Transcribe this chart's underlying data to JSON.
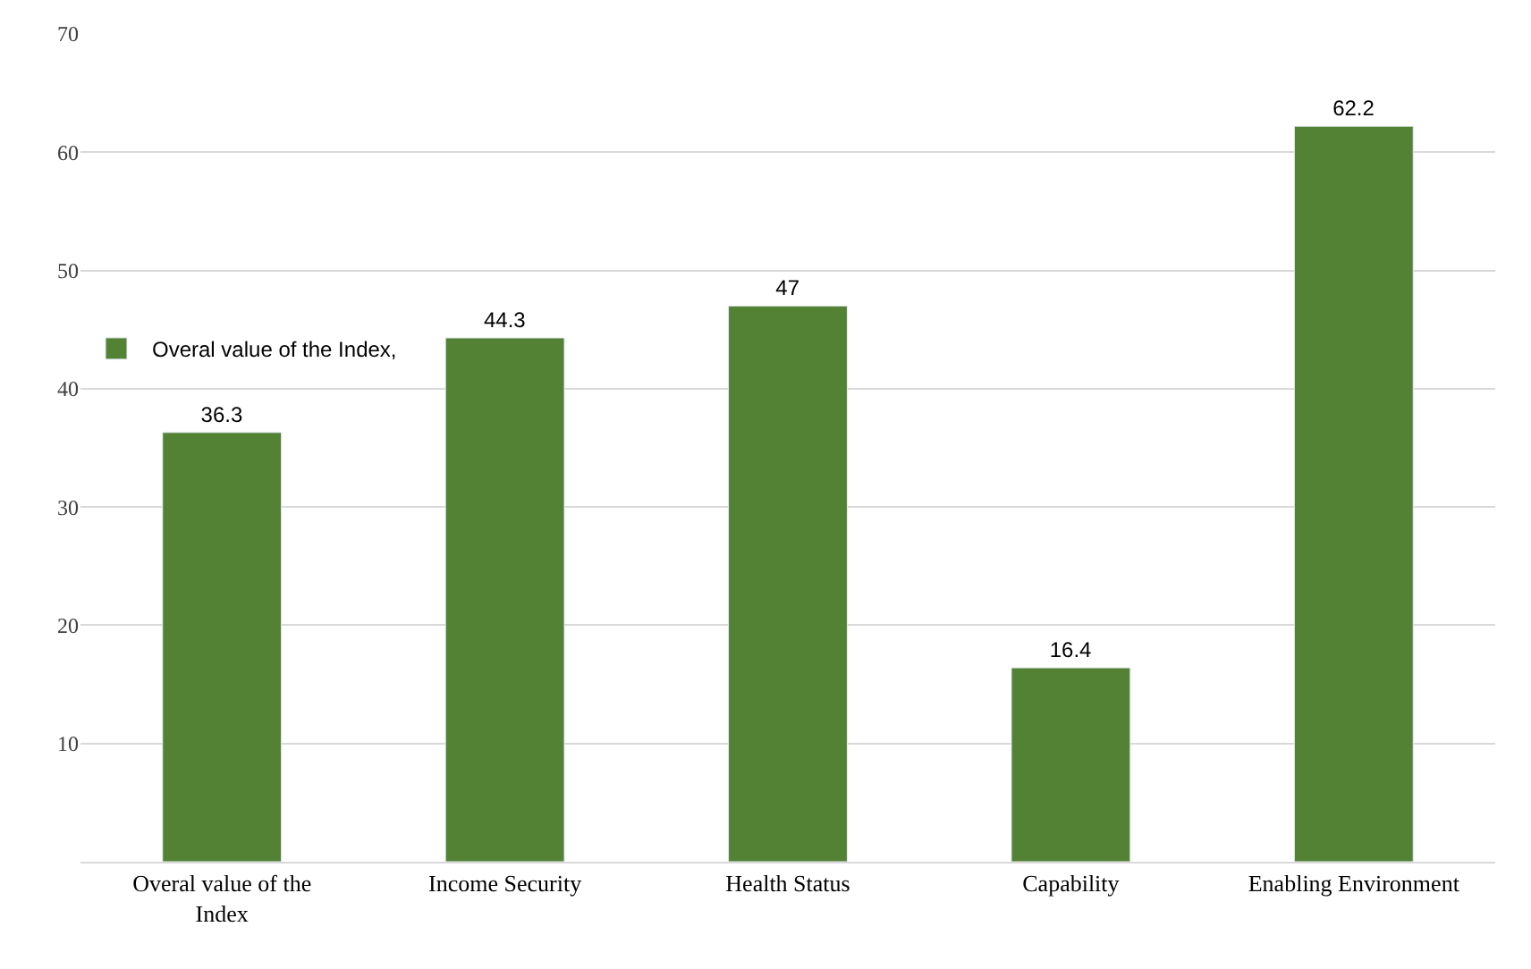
{
  "chart_data": {
    "type": "bar",
    "categories": [
      "Overal value of the Index",
      "Income Security",
      "Health Status",
      "Capability",
      "Enabling Environment"
    ],
    "series": [
      {
        "name": "Overal value of the Index,",
        "color": "#548235",
        "values": [
          36.3,
          44.3,
          47,
          16.4,
          62.2
        ]
      }
    ],
    "data_labels": true,
    "ylim": [
      0,
      70
    ],
    "yticks": [
      {
        "value": 0,
        "label": null
      },
      10,
      20,
      30,
      40,
      50,
      60,
      70
    ],
    "grid": "y",
    "legend": "left"
  }
}
